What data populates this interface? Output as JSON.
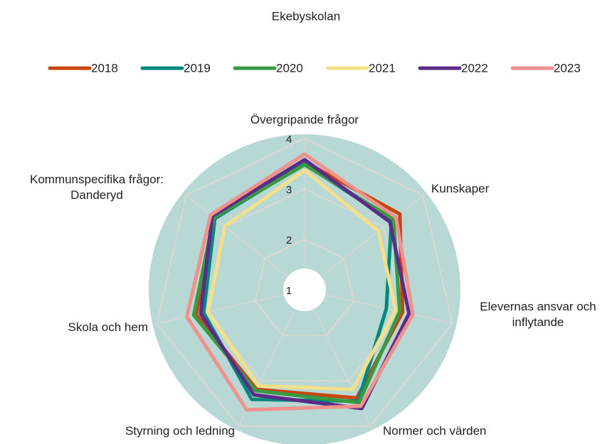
{
  "chart_data": {
    "type": "radar",
    "title": "Ekebyskolan",
    "categories": [
      "Övergripande frågor",
      "Kunskaper",
      "Elevernas ansvar och\ninflytande",
      "Normer och värden",
      "Styrning och ledning",
      "Skola och hem",
      "Kommunspecifika frågor:\nDanderyd"
    ],
    "series": [
      {
        "name": "2018",
        "color": "#c9450f",
        "values": [
          3.54,
          3.41,
          2.99,
          3.38,
          3.19,
          3.2,
          3.3
        ]
      },
      {
        "name": "2019",
        "color": "#00897b",
        "values": [
          3.5,
          3.2,
          2.66,
          3.45,
          3.41,
          3.05,
          3.27
        ]
      },
      {
        "name": "2020",
        "color": "#3a9a41",
        "values": [
          3.48,
          3.25,
          2.93,
          3.48,
          3.22,
          3.25,
          3.3
        ]
      },
      {
        "name": "2021",
        "color": "#f5e08a",
        "values": [
          3.37,
          2.87,
          2.85,
          3.19,
          3.11,
          2.96,
          3.02
        ]
      },
      {
        "name": "2022",
        "color": "#5c2a87",
        "values": [
          3.58,
          3.16,
          3.12,
          3.61,
          3.31,
          3.11,
          3.34
        ]
      },
      {
        "name": "2023",
        "color": "#f0918c",
        "values": [
          3.69,
          3.31,
          3.2,
          3.56,
          3.64,
          3.39,
          3.38
        ]
      }
    ],
    "ylim": [
      1,
      4
    ],
    "yticks": [
      1,
      2,
      3,
      4
    ],
    "grid": true,
    "legend": "top"
  }
}
